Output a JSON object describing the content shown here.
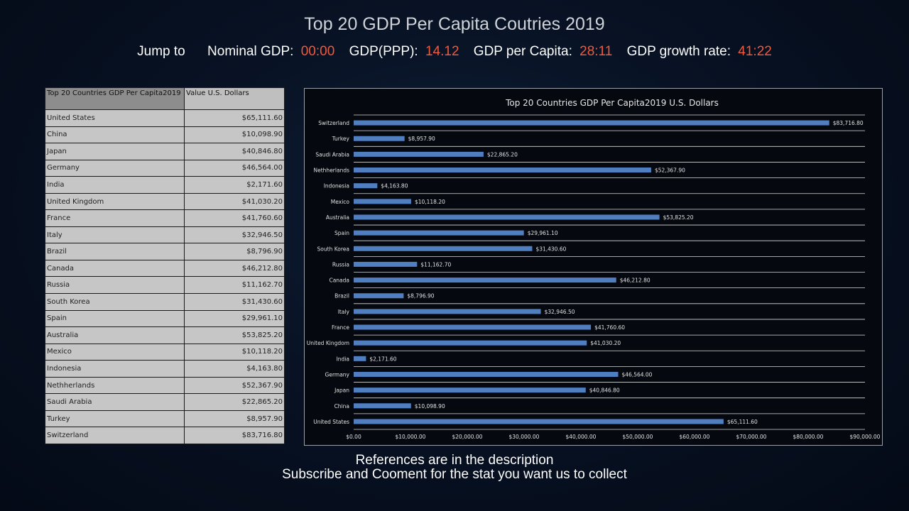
{
  "header": {
    "title": "Top 20 GDP Per Capita Coutries 2019",
    "jump_label": "Jump to",
    "links": [
      {
        "label": "Nominal GDP:",
        "time": "00:00"
      },
      {
        "label": "GDP(PPP):",
        "time": "14.12"
      },
      {
        "label": "GDP per Capita:",
        "time": "28:11"
      },
      {
        "label": "GDP growth rate:",
        "time": "41:22"
      }
    ]
  },
  "table": {
    "headers": [
      "Top 20 Countries GDP Per Capita2019",
      "Value U.S. Dollars"
    ],
    "rows": [
      [
        "United States",
        "$65,111.60"
      ],
      [
        "China",
        "$10,098.90"
      ],
      [
        "Japan",
        "$40,846.80"
      ],
      [
        "Germany",
        "$46,564.00"
      ],
      [
        "India",
        "$2,171.60"
      ],
      [
        "United Kingdom",
        "$41,030.20"
      ],
      [
        "France",
        "$41,760.60"
      ],
      [
        "Italy",
        "$32,946.50"
      ],
      [
        "Brazil",
        "$8,796.90"
      ],
      [
        "Canada",
        "$46,212.80"
      ],
      [
        "Russia",
        "$11,162.70"
      ],
      [
        "South Korea",
        "$31,430.60"
      ],
      [
        "Spain",
        "$29,961.10"
      ],
      [
        "Australia",
        "$53,825.20"
      ],
      [
        "Mexico",
        "$10,118.20"
      ],
      [
        "Indonesia",
        "$4,163.80"
      ],
      [
        "Nethherlands",
        "$52,367.90"
      ],
      [
        "Saudi Arabia",
        "$22,865.20"
      ],
      [
        "Turkey",
        "$8,957.90"
      ],
      [
        "Switzerland",
        "$83,716.80"
      ]
    ]
  },
  "chart_data": {
    "type": "bar",
    "orientation": "horizontal",
    "title": "Top 20 Countries GDP Per Capita2019 U.S. Dollars",
    "categories": [
      "Switzerland",
      "Turkey",
      "Saudi Arabia",
      "Nethherlands",
      "Indonesia",
      "Mexico",
      "Australia",
      "Spain",
      "South Korea",
      "Russia",
      "Canada",
      "Brazil",
      "Italy",
      "France",
      "United Kingdom",
      "India",
      "Germany",
      "Japan",
      "China",
      "United States"
    ],
    "values": [
      83716.8,
      8957.9,
      22865.2,
      52367.9,
      4163.8,
      10118.2,
      53825.2,
      29961.1,
      31430.6,
      11162.7,
      46212.8,
      8796.9,
      32946.5,
      41760.6,
      41030.2,
      2171.6,
      46564.0,
      40846.8,
      10098.9,
      65111.6
    ],
    "value_labels": [
      "$83,716.80",
      "$8,957.90",
      "$22,865.20",
      "$52,367.90",
      "$4,163.80",
      "$10,118.20",
      "$53,825.20",
      "$29,961.10",
      "$31,430.60",
      "$11,162.70",
      "$46,212.80",
      "$8,796.90",
      "$32,946.50",
      "$41,760.60",
      "$41,030.20",
      "$2,171.60",
      "$46,564.00",
      "$40,846.80",
      "$10,098.90",
      "$65,111.60"
    ],
    "xlim": [
      0,
      90000
    ],
    "xticks": [
      "$0.00",
      "$10,000.00",
      "$20,000.00",
      "$30,000.00",
      "$40,000.00",
      "$50,000.00",
      "$60,000.00",
      "$70,000.00",
      "$80,000.00",
      "$90,000.00"
    ],
    "grid": true,
    "bar_color": "#4f7fc0"
  },
  "footer": {
    "line1": "References are in the description",
    "line2": "Subscribe and Cooment for the stat you want us to collect"
  }
}
